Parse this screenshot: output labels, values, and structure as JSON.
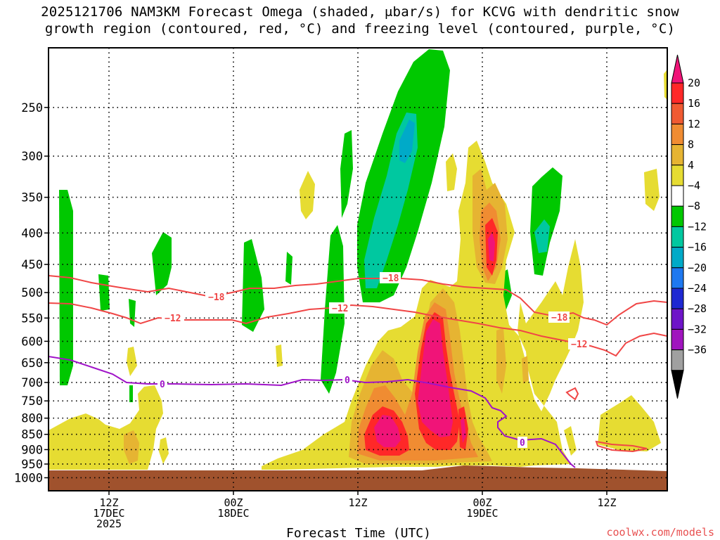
{
  "title_line1": "2025121706 NAM3KM Forecast Omega (shaded, μbar/s) for KCVG with dendritic snow",
  "title_line2": "growth region (contoured, red, °C) and freezing level (contoured, purple, °C)",
  "credit": "coolwx.com/models",
  "chart_data": {
    "type": "heatmap",
    "xlabel": "Forecast Time (UTC)",
    "x_ticks": [
      {
        "lines": [
          "12Z",
          "17DEC",
          "2025"
        ]
      },
      {
        "lines": [
          "00Z",
          "18DEC"
        ]
      },
      {
        "lines": [
          "12Z"
        ]
      },
      {
        "lines": [
          "00Z",
          "19DEC"
        ]
      },
      {
        "lines": [
          "12Z"
        ]
      }
    ],
    "y_ticks": [
      "250",
      "300",
      "350",
      "400",
      "450",
      "500",
      "550",
      "600",
      "650",
      "700",
      "750",
      "800",
      "850",
      "900",
      "950",
      "1000"
    ],
    "ylabel": "",
    "y_scale": "log-pressure (hPa), inverted",
    "colorbar": {
      "labels": [
        "20",
        "16",
        "12",
        "8",
        "4",
        "−4",
        "−8",
        "−12",
        "−16",
        "−20",
        "−24",
        "−28",
        "−32",
        "−36"
      ],
      "colors": [
        "#ff2828",
        "#f05a32",
        "#f08c32",
        "#e6b432",
        "#e6dc32",
        "#ffffff",
        "#00c800",
        "#00c8a0",
        "#00aac8",
        "#1e78f0",
        "#1e28d2",
        "#6e14c8",
        "#a014be",
        "#a0a0a0"
      ],
      "top_arrow": "#f01478",
      "bottom_arrow": "#000000"
    },
    "contours": {
      "dgz_red": {
        "color": "#f04646",
        "labels": [
          "−18",
          "−12",
          "−18",
          "−12",
          "−18",
          "−12"
        ]
      },
      "freezing_purple": {
        "color": "#a014c8",
        "labels": [
          "0",
          "0",
          "0"
        ]
      }
    },
    "ground_color": "#a0522d",
    "grid": true
  }
}
